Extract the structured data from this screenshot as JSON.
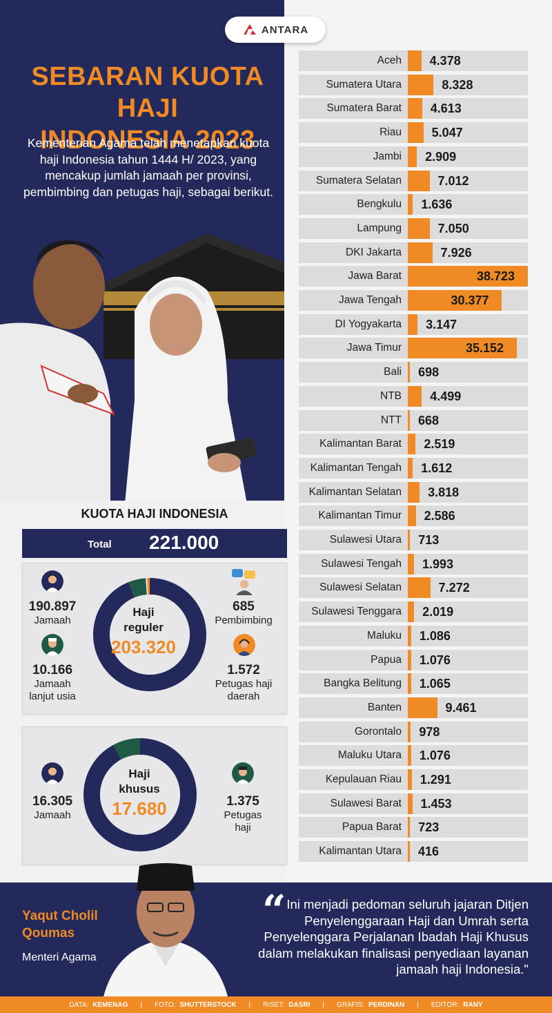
{
  "logo": {
    "text": "ANTARA"
  },
  "title": {
    "line1": "SEBARAN KUOTA HAJI",
    "line2": "INDONESIA 2023"
  },
  "intro": "Kementerian Agama telah menetapkan kuota haji Indonesia tahun 1444 H/ 2023, yang mencakup jumlah jamaah per provinsi, pembimbing dan petugas haji, sebagai berikut.",
  "kuota": {
    "heading": "KUOTA HAJI INDONESIA",
    "total_label": "Total",
    "total_value": "221.000",
    "reguler": {
      "label1": "Haji",
      "label2": "reguler",
      "value": "203.320",
      "jamaah": {
        "num": "190.897",
        "label": "Jamaah"
      },
      "lansia": {
        "num": "10.166",
        "label1": "Jamaah",
        "label2": "lanjut usia"
      },
      "pembimbing": {
        "num": "685",
        "label": "Pembimbing"
      },
      "petugas": {
        "num": "1.572",
        "label1": "Petugas haji",
        "label2": "daerah"
      }
    },
    "khusus": {
      "label1": "Haji",
      "label2": "khusus",
      "value": "17.680",
      "jamaah": {
        "num": "16.305",
        "label": "Jamaah"
      },
      "petugas": {
        "num": "1.375",
        "label1": "Petugas",
        "label2": "haji"
      }
    }
  },
  "chart_data": [
    {
      "type": "bar",
      "title": "",
      "categories": [
        "Aceh",
        "Sumatera Utara",
        "Sumatera Barat",
        "Riau",
        "Jambi",
        "Sumatera Selatan",
        "Bengkulu",
        "Lampung",
        "DKI Jakarta",
        "Jawa Barat",
        "Jawa Tengah",
        "DI Yogyakarta",
        "Jawa Timur",
        "Bali",
        "NTB",
        "NTT",
        "Kalimantan Barat",
        "Kalimantan Tengah",
        "Kalimantan Selatan",
        "Kalimantan Timur",
        "Sulawesi Utara",
        "Sulawesi Tengah",
        "Sulawesi Selatan",
        "Sulawesi Tenggara",
        "Maluku",
        "Papua",
        "Bangka Belitung",
        "Banten",
        "Gorontalo",
        "Maluku Utara",
        "Kepulauan Riau",
        "Sulawesi Barat",
        "Papua Barat",
        "Kalimantan Utara"
      ],
      "values": [
        4378,
        8328,
        4613,
        5047,
        2909,
        7012,
        1636,
        7050,
        7926,
        38723,
        30377,
        3147,
        35152,
        698,
        4499,
        668,
        2519,
        1612,
        3818,
        2586,
        713,
        1993,
        7272,
        2019,
        1086,
        1076,
        1065,
        9461,
        978,
        1076,
        1291,
        1453,
        723,
        416
      ],
      "value_labels": [
        "4.378",
        "8.328",
        "4.613",
        "5.047",
        "2.909",
        "7.012",
        "1.636",
        "7.050",
        "7.926",
        "38.723",
        "30.377",
        "3.147",
        "35.152",
        "698",
        "4.499",
        "668",
        "2.519",
        "1.612",
        "3.818",
        "2.586",
        "713",
        "1.993",
        "7.272",
        "2.019",
        "1.086",
        "1.076",
        "1.065",
        "9.461",
        "978",
        "1.076",
        "1.291",
        "1.453",
        "723",
        "416"
      ],
      "orientation": "horizontal"
    },
    {
      "type": "pie",
      "title": "Haji reguler",
      "categories": [
        "Jamaah",
        "Jamaah lanjut usia",
        "Pembimbing",
        "Petugas haji daerah"
      ],
      "values": [
        190897,
        10166,
        685,
        1572
      ]
    },
    {
      "type": "pie",
      "title": "Haji khusus",
      "categories": [
        "Jamaah",
        "Petugas haji"
      ],
      "values": [
        16305,
        1375
      ]
    }
  ],
  "colors": {
    "navy": "#232a5b",
    "orange": "#f08a24",
    "green": "#1f5b44",
    "bar_bg": "#dcdcdc"
  },
  "speaker": {
    "name1": "Yaqut Cholil",
    "name2": "Qoumas",
    "role": "Menteri Agama"
  },
  "quote": {
    "mark": "“",
    "text": "Ini menjadi pedoman seluruh jajaran Ditjen Penyelenggaraan Haji dan Umrah serta Penyelenggara Perjalanan Ibadah Haji Khusus dalam melakukan finalisasi penyediaan layanan jamaah haji Indonesia.\""
  },
  "footer": {
    "data_label": "DATA:",
    "data_value": "KEMENAG",
    "foto_label": "FOTO:",
    "foto_value": "SHUTTERSTOCK",
    "riset_label": "RISET:",
    "riset_value": "DASRI",
    "grafis_label": "GRAFIS:",
    "grafis_value": "PERDINAN",
    "editor_label": "EDITOR:",
    "editor_value": "RANY",
    "sep": "|"
  },
  "icons": [
    "antara-logo-icon",
    "kaaba-illustration",
    "pilgrims-photo",
    "jamaah-icon",
    "lansia-icon",
    "pembimbing-icon",
    "petugas-icon",
    "minister-portrait"
  ]
}
